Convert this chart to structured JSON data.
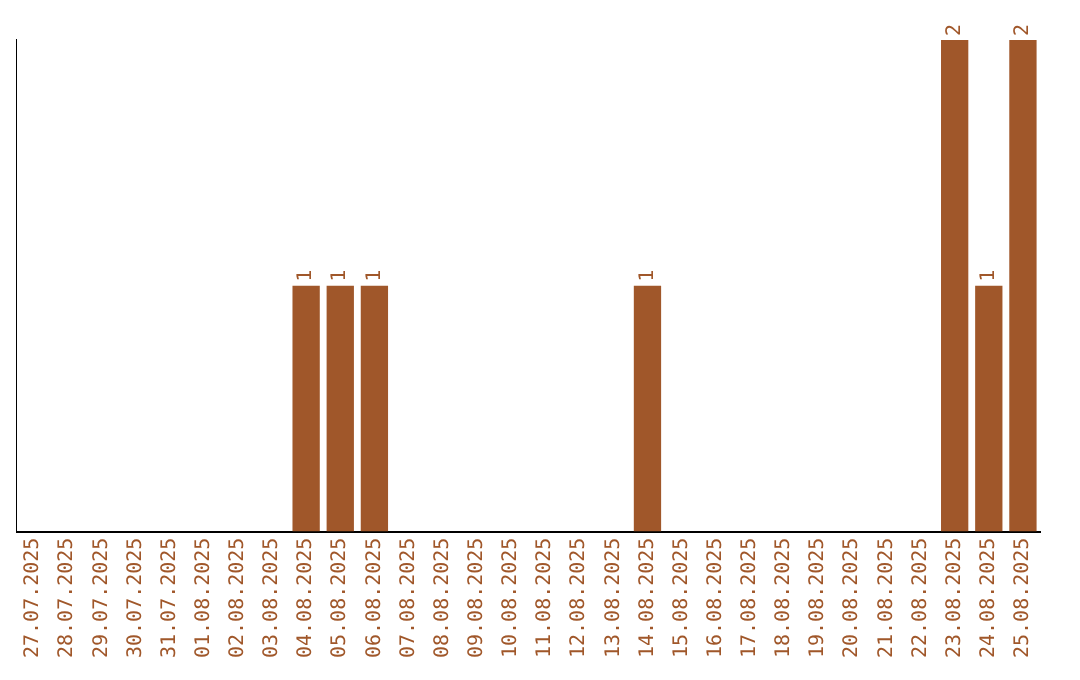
{
  "chart_data": {
    "type": "bar",
    "categories": [
      "27.07.2025",
      "28.07.2025",
      "29.07.2025",
      "30.07.2025",
      "31.07.2025",
      "01.08.2025",
      "02.08.2025",
      "03.08.2025",
      "04.08.2025",
      "05.08.2025",
      "06.08.2025",
      "07.08.2025",
      "08.08.2025",
      "09.08.2025",
      "10.08.2025",
      "11.08.2025",
      "12.08.2025",
      "13.08.2025",
      "14.08.2025",
      "15.08.2025",
      "16.08.2025",
      "17.08.2025",
      "18.08.2025",
      "19.08.2025",
      "20.08.2025",
      "21.08.2025",
      "22.08.2025",
      "23.08.2025",
      "24.08.2025",
      "25.08.2025"
    ],
    "values": [
      0,
      0,
      0,
      0,
      0,
      0,
      0,
      0,
      1,
      1,
      1,
      0,
      0,
      0,
      0,
      0,
      0,
      0,
      1,
      0,
      0,
      0,
      0,
      0,
      0,
      0,
      0,
      2,
      1,
      2
    ],
    "value_labels": [
      null,
      null,
      null,
      null,
      null,
      null,
      null,
      null,
      "1",
      "1",
      "1",
      null,
      null,
      null,
      null,
      null,
      null,
      null,
      "1",
      null,
      null,
      null,
      null,
      null,
      null,
      null,
      null,
      "2",
      "1",
      "2"
    ],
    "color": "#a0572a",
    "grid": false,
    "legend": false,
    "tick_labels": "x"
  }
}
